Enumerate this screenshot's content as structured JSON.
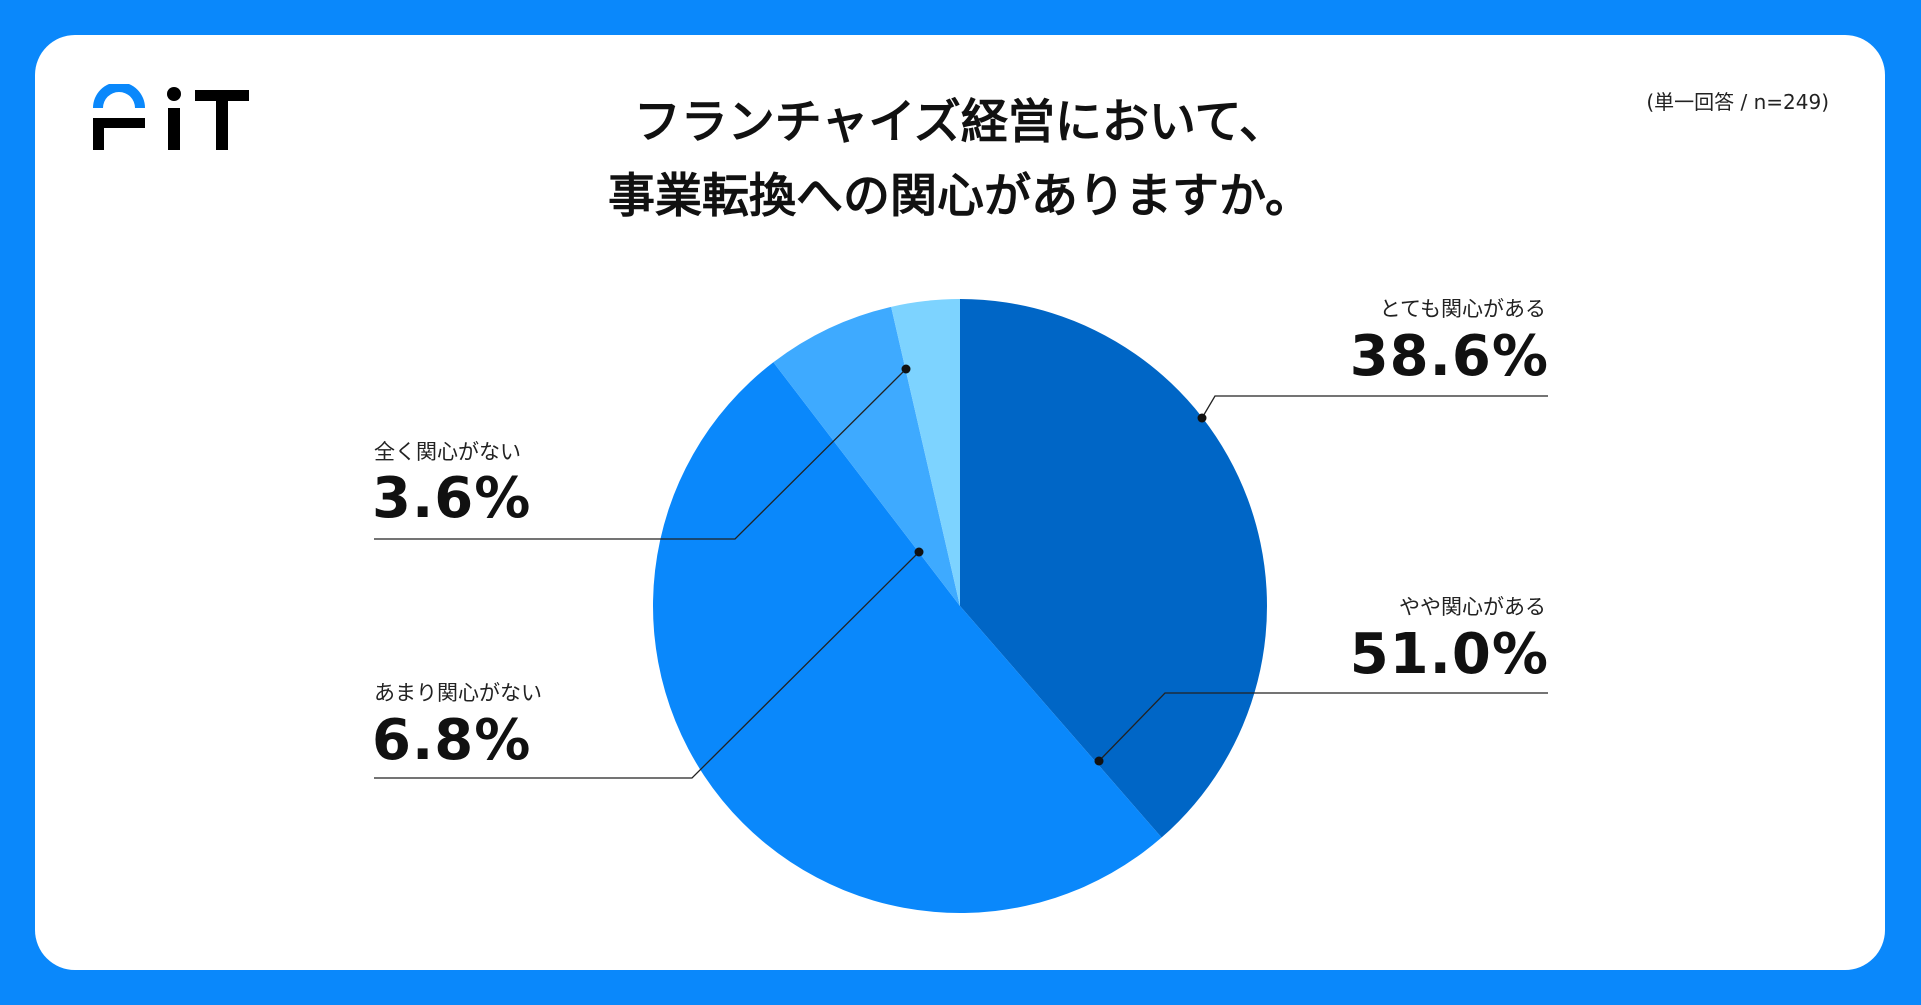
{
  "brand": {
    "logo_text": "FIT",
    "accent": "#0a88fb"
  },
  "header": {
    "title_line1": "フランチャイズ経営において、",
    "title_line2": "事業転換への関心がありますか。",
    "note": "(単一回答 / n=249)"
  },
  "chart_data": {
    "type": "pie",
    "title": "フランチャイズ経営において、事業転換への関心がありますか。",
    "slices": [
      {
        "label": "とても関心がある",
        "value": 38.6,
        "display": "38.6%",
        "color": "#0066c6"
      },
      {
        "label": "やや関心がある",
        "value": 51.0,
        "display": "51.0%",
        "color": "#0a88fb"
      },
      {
        "label": "あまり関心がない",
        "value": 6.8,
        "display": "6.8%",
        "color": "#3eaaff"
      },
      {
        "label": "全く関心がない",
        "value": 3.6,
        "display": "3.6%",
        "color": "#7dd3ff"
      }
    ],
    "start": "12 o'clock",
    "direction": "clockwise"
  }
}
